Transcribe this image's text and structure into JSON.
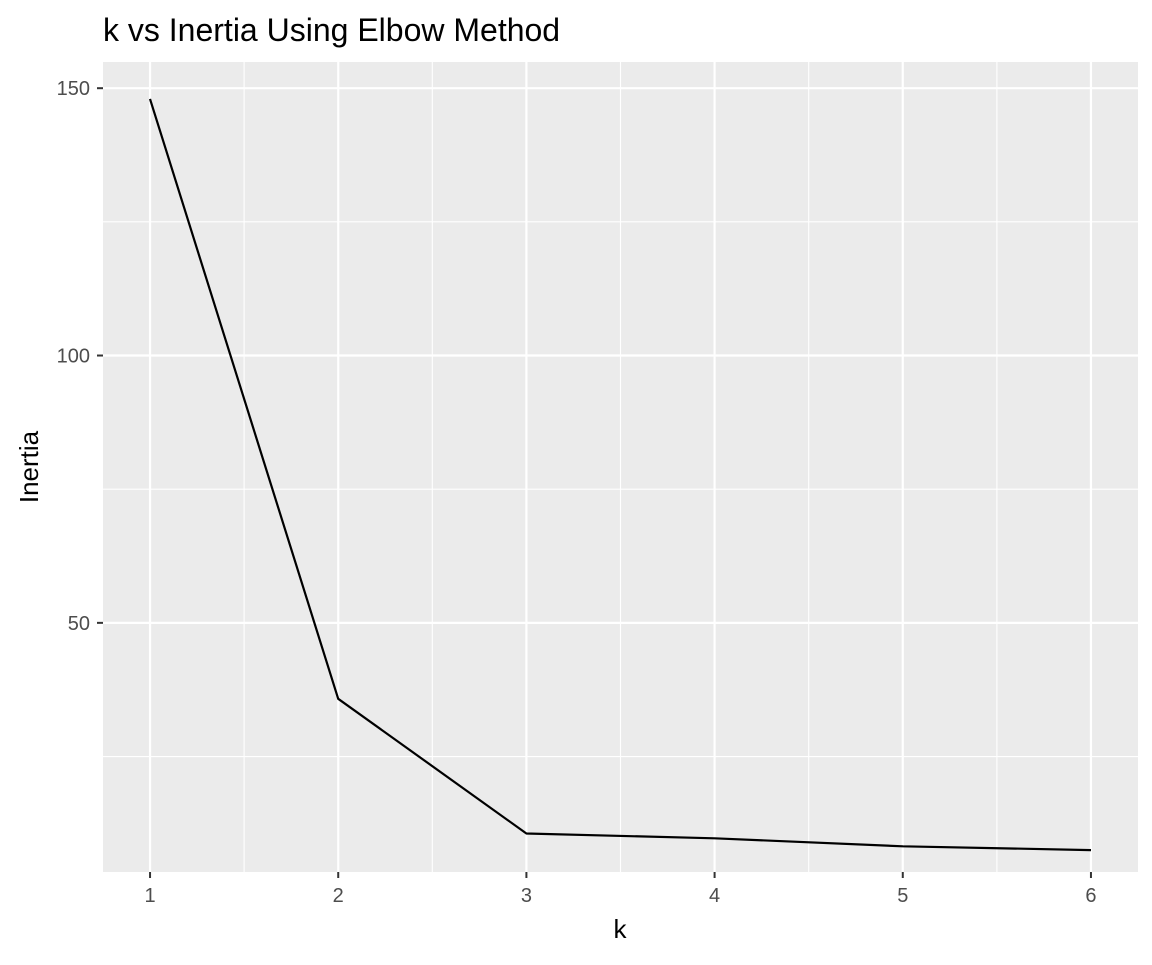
{
  "chart_data": {
    "type": "line",
    "title": "k vs Inertia Using Elbow Method",
    "xlabel": "k",
    "ylabel": "Inertia",
    "x": [
      1,
      2,
      3,
      4,
      5,
      6
    ],
    "series": [
      {
        "values": [
          148,
          35.8,
          10.6,
          9.7,
          8.2,
          7.5
        ],
        "color": "#000000"
      }
    ],
    "xticks": [
      "1",
      "2",
      "3",
      "4",
      "5",
      "6"
    ],
    "yticks": [
      "50",
      "100",
      "150"
    ],
    "xlim": [
      0.75,
      6.25
    ],
    "ylim": [
      3.4,
      154.9
    ],
    "grid": true,
    "legend": "none",
    "panel_color": "#ebebeb",
    "grid_color": "#ffffff"
  }
}
